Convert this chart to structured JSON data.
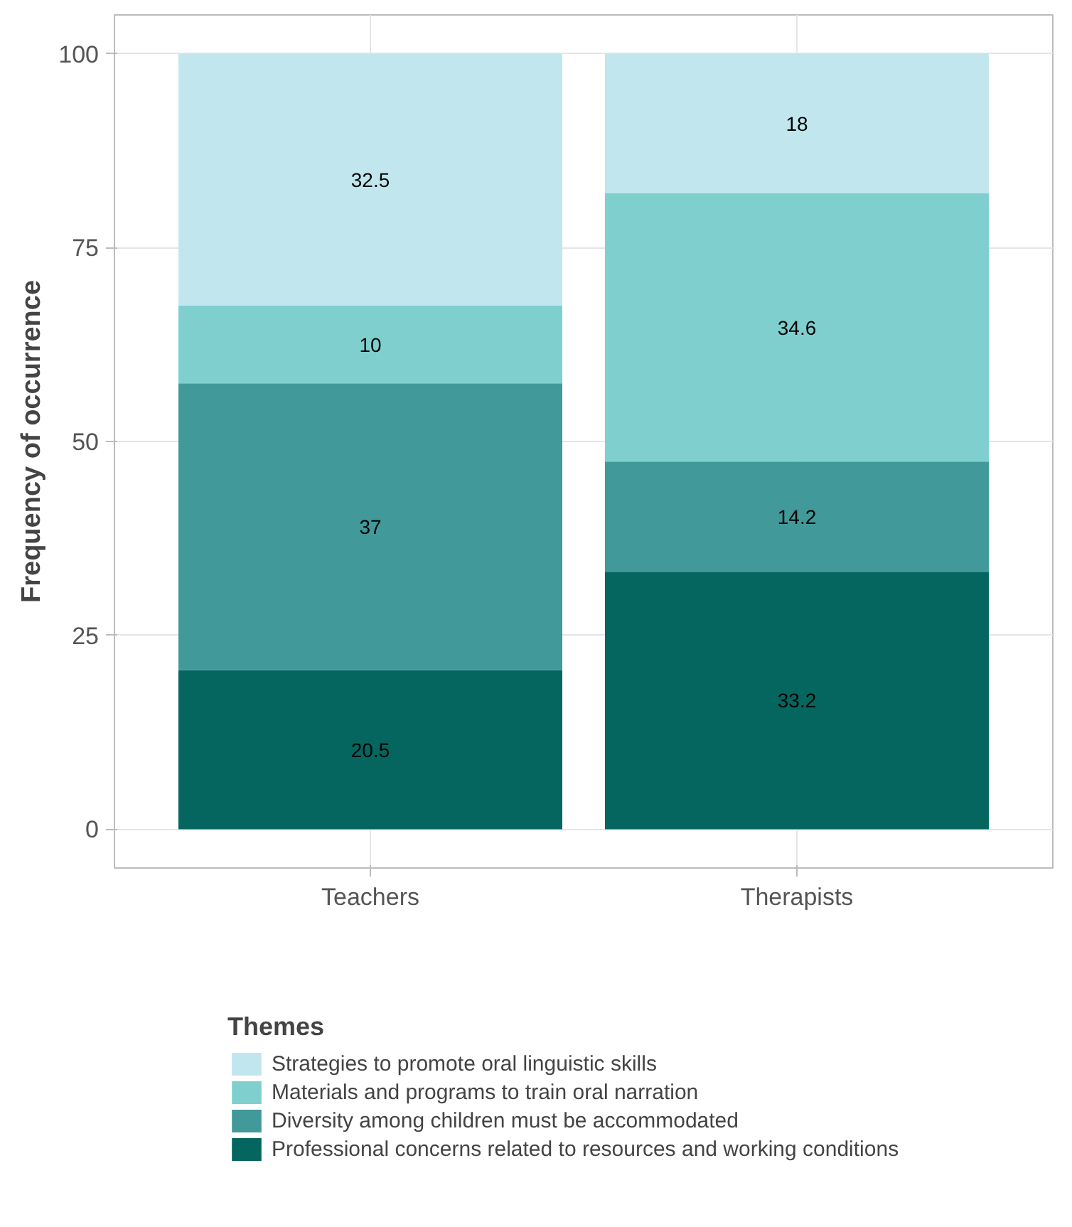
{
  "chart_data": {
    "type": "bar",
    "stacked": true,
    "ylabel": "Frequency of occurrence",
    "legend_title": "Themes",
    "categories": [
      "Teachers",
      "Therapists"
    ],
    "series": [
      {
        "name": "Professional concerns related to resources and working conditions",
        "color": "#04665f",
        "values": [
          20.5,
          33.2
        ]
      },
      {
        "name": "Diversity among children must be accommodated",
        "color": "#42999a",
        "values": [
          37,
          14.2
        ]
      },
      {
        "name": "Materials and programs to train oral narration",
        "color": "#80cfcf",
        "values": [
          10,
          34.6
        ]
      },
      {
        "name": "Strategies to promote oral linguistic skills",
        "color": "#c1e6ed",
        "values": [
          32.5,
          18
        ]
      }
    ],
    "ylim": [
      -5,
      105
    ],
    "yticks": [
      0,
      25,
      50,
      75,
      100
    ],
    "grid": true,
    "legend": "bottom",
    "data_labels": true
  }
}
